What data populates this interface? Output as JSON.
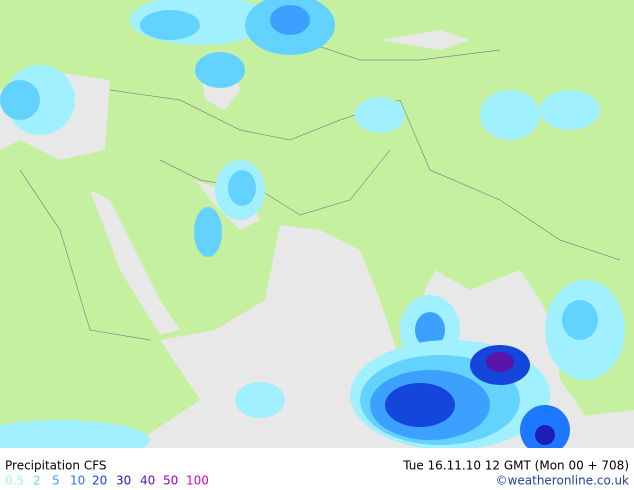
{
  "title": "Precipitation CFS",
  "legend": {
    "values": [
      0.5,
      2,
      5,
      10,
      20,
      30,
      40,
      50,
      100
    ],
    "colors": [
      "#a0f0ff",
      "#64d2ff",
      "#3ca0ff",
      "#1e78ff",
      "#1446dc",
      "#1e1eb4",
      "#5a14aa",
      "#9600c8",
      "#d200d2"
    ]
  },
  "valid_time": "Tue 16.11.10 12 GMT (Mon 00 + 708)",
  "credit": "©weatheronline.co.uk"
}
